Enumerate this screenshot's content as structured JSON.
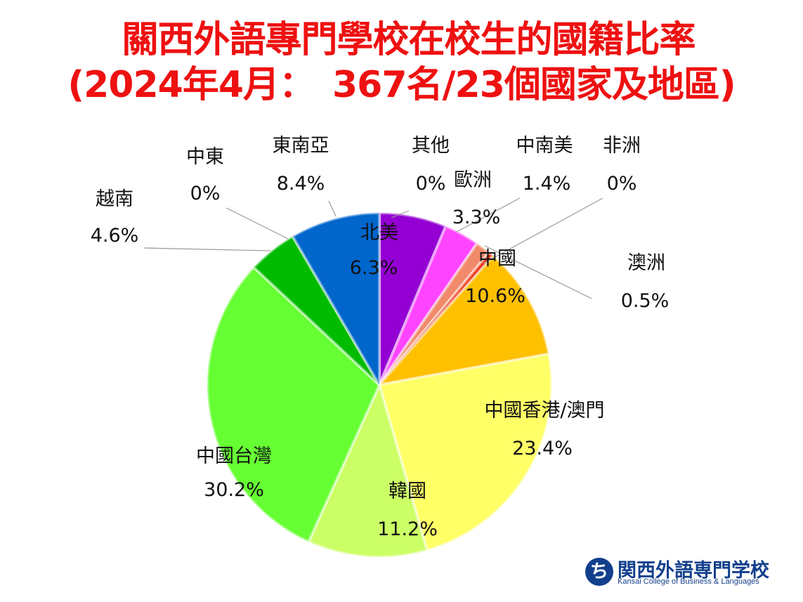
{
  "title_line1": "關西外語專門學校在校生的國籍比率",
  "title_line2": "(2024年4月：　367名/23個國家及地區)",
  "logo": {
    "mark": "ち",
    "name": "関西外語専門学校",
    "subtitle": "Kansai College of Business & Languages"
  },
  "chart_data": {
    "type": "pie",
    "start_angle_deg": 0,
    "direction": "clockwise",
    "slices": [
      {
        "name": "北美",
        "value": 6.3,
        "label": "6.3%",
        "color": "#9400d3"
      },
      {
        "name": "其他",
        "value": 0.0,
        "label": "0%",
        "color": "#6600aa"
      },
      {
        "name": "歐洲",
        "value": 3.3,
        "label": "3.3%",
        "color": "#ff44ff"
      },
      {
        "name": "中南美",
        "value": 1.4,
        "label": "1.4%",
        "color": "#f08a6a"
      },
      {
        "name": "非洲",
        "value": 0.0,
        "label": "0%",
        "color": "#f06a4a"
      },
      {
        "name": "澳洲",
        "value": 0.5,
        "label": "0.5%",
        "color": "#ee3311"
      },
      {
        "name": "中國",
        "value": 10.6,
        "label": "10.6%",
        "color": "#ffc000"
      },
      {
        "name": "中國香港/澳門",
        "value": 23.4,
        "label": "23.4%",
        "color": "#ffff66"
      },
      {
        "name": "韓國",
        "value": 11.2,
        "label": "11.2%",
        "color": "#ccff66"
      },
      {
        "name": "中國台灣",
        "value": 30.2,
        "label": "30.2%",
        "color": "#66ff33"
      },
      {
        "name": "越南",
        "value": 4.6,
        "label": "4.6%",
        "color": "#00bb00"
      },
      {
        "name": "中東",
        "value": 0.0,
        "label": "0%",
        "color": "#119911"
      },
      {
        "name": "東南亞",
        "value": 8.4,
        "label": "8.4%",
        "color": "#0066cc"
      }
    ]
  }
}
